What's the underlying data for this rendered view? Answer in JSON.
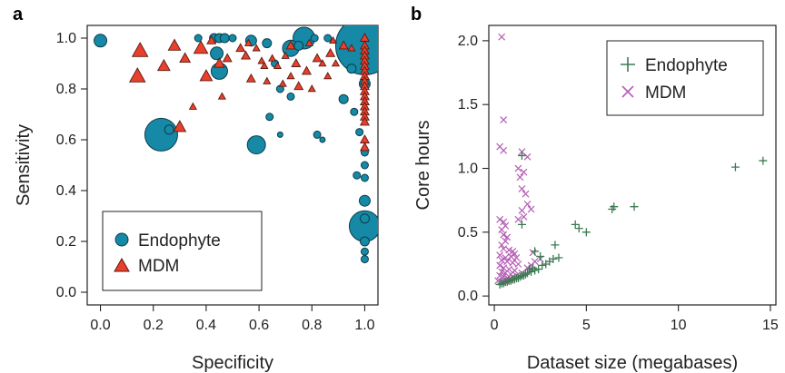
{
  "colors": {
    "endophyte_fill": "#1589a6",
    "mdm_fill": "#e8402b",
    "endophyte_cross": "#3d7a52",
    "mdm_cross": "#b55fb5",
    "axis": "#222222"
  },
  "chart_data": [
    {
      "panel": "a",
      "type": "scatter",
      "title": "",
      "xlabel": "Specificity",
      "ylabel": "Sensitivity",
      "xlim": [
        -0.05,
        1.05
      ],
      "ylim": [
        -0.05,
        1.05
      ],
      "xticks": [
        "0.0",
        "0.2",
        "0.4",
        "0.6",
        "0.8",
        "1.0"
      ],
      "yticks": [
        "0.0",
        "0.2",
        "0.4",
        "0.6",
        "0.8",
        "1.0"
      ],
      "legend": {
        "placement": "bottom-left",
        "entries": [
          "Endophyte",
          "MDM"
        ]
      },
      "series": [
        {
          "name": "Endophyte",
          "marker": "circle",
          "points": [
            {
              "x": 0.0,
              "y": 0.99,
              "s": 7
            },
            {
              "x": 0.23,
              "y": 0.62,
              "s": 18
            },
            {
              "x": 0.26,
              "y": 0.64,
              "s": 5
            },
            {
              "x": 0.59,
              "y": 0.58,
              "s": 10
            },
            {
              "x": 0.44,
              "y": 0.94,
              "s": 7
            },
            {
              "x": 0.45,
              "y": 0.87,
              "s": 9
            },
            {
              "x": 0.37,
              "y": 1.0,
              "s": 4
            },
            {
              "x": 0.43,
              "y": 1.0,
              "s": 5
            },
            {
              "x": 0.45,
              "y": 1.0,
              "s": 5
            },
            {
              "x": 0.47,
              "y": 1.0,
              "s": 5
            },
            {
              "x": 0.5,
              "y": 1.0,
              "s": 4
            },
            {
              "x": 0.57,
              "y": 0.99,
              "s": 6
            },
            {
              "x": 0.63,
              "y": 0.98,
              "s": 5
            },
            {
              "x": 0.72,
              "y": 0.96,
              "s": 9
            },
            {
              "x": 0.75,
              "y": 0.97,
              "s": 5
            },
            {
              "x": 0.77,
              "y": 1.0,
              "s": 12
            },
            {
              "x": 0.81,
              "y": 1.0,
              "s": 4
            },
            {
              "x": 0.86,
              "y": 1.0,
              "s": 4
            },
            {
              "x": 0.66,
              "y": 0.9,
              "s": 4
            },
            {
              "x": 0.68,
              "y": 0.8,
              "s": 4
            },
            {
              "x": 0.64,
              "y": 0.69,
              "s": 4
            },
            {
              "x": 0.72,
              "y": 0.77,
              "s": 4
            },
            {
              "x": 0.68,
              "y": 0.62,
              "s": 3
            },
            {
              "x": 0.82,
              "y": 0.62,
              "s": 4
            },
            {
              "x": 0.84,
              "y": 0.6,
              "s": 3
            },
            {
              "x": 0.92,
              "y": 0.76,
              "s": 5
            },
            {
              "x": 0.95,
              "y": 0.88,
              "s": 5
            },
            {
              "x": 0.96,
              "y": 0.71,
              "s": 4
            },
            {
              "x": 0.97,
              "y": 0.46,
              "s": 4
            },
            {
              "x": 1.0,
              "y": 0.97,
              "s": 32
            },
            {
              "x": 1.0,
              "y": 0.26,
              "s": 17
            },
            {
              "x": 1.0,
              "y": 0.36,
              "s": 6
            },
            {
              "x": 1.0,
              "y": 0.29,
              "s": 5
            },
            {
              "x": 1.0,
              "y": 0.2,
              "s": 5
            },
            {
              "x": 1.0,
              "y": 0.16,
              "s": 4
            },
            {
              "x": 1.0,
              "y": 0.13,
              "s": 4
            },
            {
              "x": 1.0,
              "y": 0.5,
              "s": 4
            },
            {
              "x": 1.0,
              "y": 0.45,
              "s": 4
            },
            {
              "x": 1.0,
              "y": 0.55,
              "s": 4
            },
            {
              "x": 0.98,
              "y": 0.63,
              "s": 4
            },
            {
              "x": 1.0,
              "y": 0.82,
              "s": 6
            }
          ]
        },
        {
          "name": "MDM",
          "marker": "triangle",
          "points": [
            {
              "x": 0.15,
              "y": 0.95,
              "s": 9
            },
            {
              "x": 0.14,
              "y": 0.85,
              "s": 9
            },
            {
              "x": 0.24,
              "y": 0.89,
              "s": 7
            },
            {
              "x": 0.28,
              "y": 0.97,
              "s": 7
            },
            {
              "x": 0.3,
              "y": 0.65,
              "s": 7
            },
            {
              "x": 0.32,
              "y": 0.92,
              "s": 6
            },
            {
              "x": 0.35,
              "y": 0.73,
              "s": 4
            },
            {
              "x": 0.38,
              "y": 0.96,
              "s": 8
            },
            {
              "x": 0.4,
              "y": 0.85,
              "s": 7
            },
            {
              "x": 0.42,
              "y": 0.99,
              "s": 5
            },
            {
              "x": 0.45,
              "y": 0.9,
              "s": 6
            },
            {
              "x": 0.46,
              "y": 0.77,
              "s": 4
            },
            {
              "x": 0.48,
              "y": 0.92,
              "s": 5
            },
            {
              "x": 0.53,
              "y": 0.96,
              "s": 5
            },
            {
              "x": 0.55,
              "y": 0.93,
              "s": 5
            },
            {
              "x": 0.56,
              "y": 0.98,
              "s": 4
            },
            {
              "x": 0.57,
              "y": 0.84,
              "s": 5
            },
            {
              "x": 0.59,
              "y": 0.96,
              "s": 4
            },
            {
              "x": 0.61,
              "y": 0.91,
              "s": 4
            },
            {
              "x": 0.62,
              "y": 0.89,
              "s": 4
            },
            {
              "x": 0.63,
              "y": 0.83,
              "s": 4
            },
            {
              "x": 0.65,
              "y": 0.92,
              "s": 4
            },
            {
              "x": 0.67,
              "y": 0.89,
              "s": 4
            },
            {
              "x": 0.69,
              "y": 0.82,
              "s": 4
            },
            {
              "x": 0.7,
              "y": 0.93,
              "s": 4
            },
            {
              "x": 0.72,
              "y": 0.97,
              "s": 5
            },
            {
              "x": 0.72,
              "y": 0.85,
              "s": 4
            },
            {
              "x": 0.74,
              "y": 0.9,
              "s": 5
            },
            {
              "x": 0.75,
              "y": 0.81,
              "s": 5
            },
            {
              "x": 0.78,
              "y": 0.87,
              "s": 5
            },
            {
              "x": 0.79,
              "y": 0.98,
              "s": 4
            },
            {
              "x": 0.8,
              "y": 0.8,
              "s": 4
            },
            {
              "x": 0.82,
              "y": 0.92,
              "s": 5
            },
            {
              "x": 0.84,
              "y": 0.9,
              "s": 4
            },
            {
              "x": 0.86,
              "y": 0.85,
              "s": 4
            },
            {
              "x": 0.87,
              "y": 0.94,
              "s": 5
            },
            {
              "x": 0.88,
              "y": 0.99,
              "s": 4
            },
            {
              "x": 0.89,
              "y": 0.9,
              "s": 4
            },
            {
              "x": 0.92,
              "y": 0.97,
              "s": 5
            },
            {
              "x": 0.95,
              "y": 0.96,
              "s": 4
            },
            {
              "x": 1.0,
              "y": 1.0,
              "s": 5
            },
            {
              "x": 1.0,
              "y": 0.97,
              "s": 5
            },
            {
              "x": 1.0,
              "y": 0.95,
              "s": 5
            },
            {
              "x": 1.0,
              "y": 0.93,
              "s": 5
            },
            {
              "x": 1.0,
              "y": 0.91,
              "s": 5
            },
            {
              "x": 1.0,
              "y": 0.89,
              "s": 5
            },
            {
              "x": 1.0,
              "y": 0.87,
              "s": 5
            },
            {
              "x": 1.0,
              "y": 0.85,
              "s": 5
            },
            {
              "x": 1.0,
              "y": 0.83,
              "s": 5
            },
            {
              "x": 1.0,
              "y": 0.81,
              "s": 5
            },
            {
              "x": 1.0,
              "y": 0.79,
              "s": 5
            },
            {
              "x": 1.0,
              "y": 0.77,
              "s": 5
            },
            {
              "x": 1.0,
              "y": 0.75,
              "s": 5
            },
            {
              "x": 1.0,
              "y": 0.73,
              "s": 5
            },
            {
              "x": 1.0,
              "y": 0.71,
              "s": 5
            },
            {
              "x": 1.0,
              "y": 0.69,
              "s": 5
            },
            {
              "x": 1.0,
              "y": 0.67,
              "s": 5
            },
            {
              "x": 1.0,
              "y": 0.6,
              "s": 5
            },
            {
              "x": 1.0,
              "y": 0.57,
              "s": 5
            }
          ]
        }
      ]
    },
    {
      "panel": "b",
      "type": "scatter",
      "title": "",
      "xlabel": "Dataset size (megabases)",
      "ylabel": "Core hours",
      "xlim": [
        -0.3,
        15.3
      ],
      "ylim": [
        -0.07,
        2.12
      ],
      "xticks": [
        "0",
        "5",
        "10",
        "15"
      ],
      "yticks": [
        "0.0",
        "0.5",
        "1.0",
        "1.5",
        "2.0"
      ],
      "legend": {
        "placement": "top-right",
        "entries": [
          "Endophyte",
          "MDM"
        ]
      },
      "series": [
        {
          "name": "Endophyte",
          "marker": "plus",
          "points": [
            {
              "x": 0.3,
              "y": 0.09
            },
            {
              "x": 0.4,
              "y": 0.1
            },
            {
              "x": 0.5,
              "y": 0.1
            },
            {
              "x": 0.6,
              "y": 0.11
            },
            {
              "x": 0.7,
              "y": 0.11
            },
            {
              "x": 0.8,
              "y": 0.12
            },
            {
              "x": 0.9,
              "y": 0.12
            },
            {
              "x": 1.0,
              "y": 0.13
            },
            {
              "x": 1.1,
              "y": 0.13
            },
            {
              "x": 1.2,
              "y": 0.14
            },
            {
              "x": 1.3,
              "y": 0.14
            },
            {
              "x": 1.4,
              "y": 0.15
            },
            {
              "x": 1.5,
              "y": 0.16
            },
            {
              "x": 1.6,
              "y": 0.16
            },
            {
              "x": 1.7,
              "y": 0.17
            },
            {
              "x": 1.8,
              "y": 0.18
            },
            {
              "x": 2.0,
              "y": 0.19
            },
            {
              "x": 2.2,
              "y": 0.2
            },
            {
              "x": 2.4,
              "y": 0.21
            },
            {
              "x": 2.6,
              "y": 0.24
            },
            {
              "x": 2.8,
              "y": 0.25
            },
            {
              "x": 3.0,
              "y": 0.27
            },
            {
              "x": 3.2,
              "y": 0.29
            },
            {
              "x": 3.5,
              "y": 0.3
            },
            {
              "x": 2.1,
              "y": 0.22
            },
            {
              "x": 1.9,
              "y": 0.21
            },
            {
              "x": 2.5,
              "y": 0.31
            },
            {
              "x": 2.2,
              "y": 0.35
            },
            {
              "x": 1.5,
              "y": 0.56
            },
            {
              "x": 3.3,
              "y": 0.4
            },
            {
              "x": 4.4,
              "y": 0.56
            },
            {
              "x": 4.6,
              "y": 0.53
            },
            {
              "x": 5.0,
              "y": 0.5
            },
            {
              "x": 6.4,
              "y": 0.68
            },
            {
              "x": 6.5,
              "y": 0.7
            },
            {
              "x": 7.6,
              "y": 0.7
            },
            {
              "x": 1.5,
              "y": 1.1
            },
            {
              "x": 13.1,
              "y": 1.01
            },
            {
              "x": 14.6,
              "y": 1.06
            }
          ]
        },
        {
          "name": "MDM",
          "marker": "cross",
          "points": [
            {
              "x": 0.4,
              "y": 2.03
            },
            {
              "x": 0.5,
              "y": 1.38
            },
            {
              "x": 0.3,
              "y": 1.17
            },
            {
              "x": 0.5,
              "y": 1.14
            },
            {
              "x": 1.5,
              "y": 1.13
            },
            {
              "x": 1.8,
              "y": 1.09
            },
            {
              "x": 1.3,
              "y": 1.0
            },
            {
              "x": 1.6,
              "y": 0.97
            },
            {
              "x": 1.4,
              "y": 0.93
            },
            {
              "x": 1.5,
              "y": 0.84
            },
            {
              "x": 1.7,
              "y": 0.8
            },
            {
              "x": 1.8,
              "y": 0.72
            },
            {
              "x": 1.5,
              "y": 0.67
            },
            {
              "x": 2.0,
              "y": 0.68
            },
            {
              "x": 1.3,
              "y": 0.6
            },
            {
              "x": 1.6,
              "y": 0.62
            },
            {
              "x": 0.3,
              "y": 0.6
            },
            {
              "x": 0.5,
              "y": 0.58
            },
            {
              "x": 0.6,
              "y": 0.55
            },
            {
              "x": 0.4,
              "y": 0.52
            },
            {
              "x": 0.5,
              "y": 0.48
            },
            {
              "x": 0.7,
              "y": 0.46
            },
            {
              "x": 0.6,
              "y": 0.43
            },
            {
              "x": 0.4,
              "y": 0.4
            },
            {
              "x": 0.5,
              "y": 0.37
            },
            {
              "x": 0.8,
              "y": 0.36
            },
            {
              "x": 1.0,
              "y": 0.35
            },
            {
              "x": 1.1,
              "y": 0.33
            },
            {
              "x": 0.3,
              "y": 0.32
            },
            {
              "x": 0.6,
              "y": 0.3
            },
            {
              "x": 0.9,
              "y": 0.31
            },
            {
              "x": 1.2,
              "y": 0.3
            },
            {
              "x": 0.4,
              "y": 0.28
            },
            {
              "x": 0.7,
              "y": 0.27
            },
            {
              "x": 1.0,
              "y": 0.26
            },
            {
              "x": 1.3,
              "y": 0.25
            },
            {
              "x": 0.3,
              "y": 0.24
            },
            {
              "x": 0.5,
              "y": 0.22
            },
            {
              "x": 0.8,
              "y": 0.21
            },
            {
              "x": 1.1,
              "y": 0.2
            },
            {
              "x": 0.4,
              "y": 0.19
            },
            {
              "x": 0.6,
              "y": 0.18
            },
            {
              "x": 0.9,
              "y": 0.17
            },
            {
              "x": 0.3,
              "y": 0.16
            },
            {
              "x": 0.5,
              "y": 0.15
            },
            {
              "x": 0.7,
              "y": 0.14
            },
            {
              "x": 0.2,
              "y": 0.12
            },
            {
              "x": 0.4,
              "y": 0.11
            },
            {
              "x": 0.6,
              "y": 0.12
            },
            {
              "x": 0.8,
              "y": 0.13
            },
            {
              "x": 1.0,
              "y": 0.15
            },
            {
              "x": 1.2,
              "y": 0.16
            },
            {
              "x": 1.5,
              "y": 0.18
            },
            {
              "x": 1.8,
              "y": 0.22
            },
            {
              "x": 2.0,
              "y": 0.24
            },
            {
              "x": 2.2,
              "y": 0.27
            },
            {
              "x": 2.5,
              "y": 0.29
            },
            {
              "x": 2.1,
              "y": 0.34
            }
          ]
        }
      ]
    }
  ]
}
